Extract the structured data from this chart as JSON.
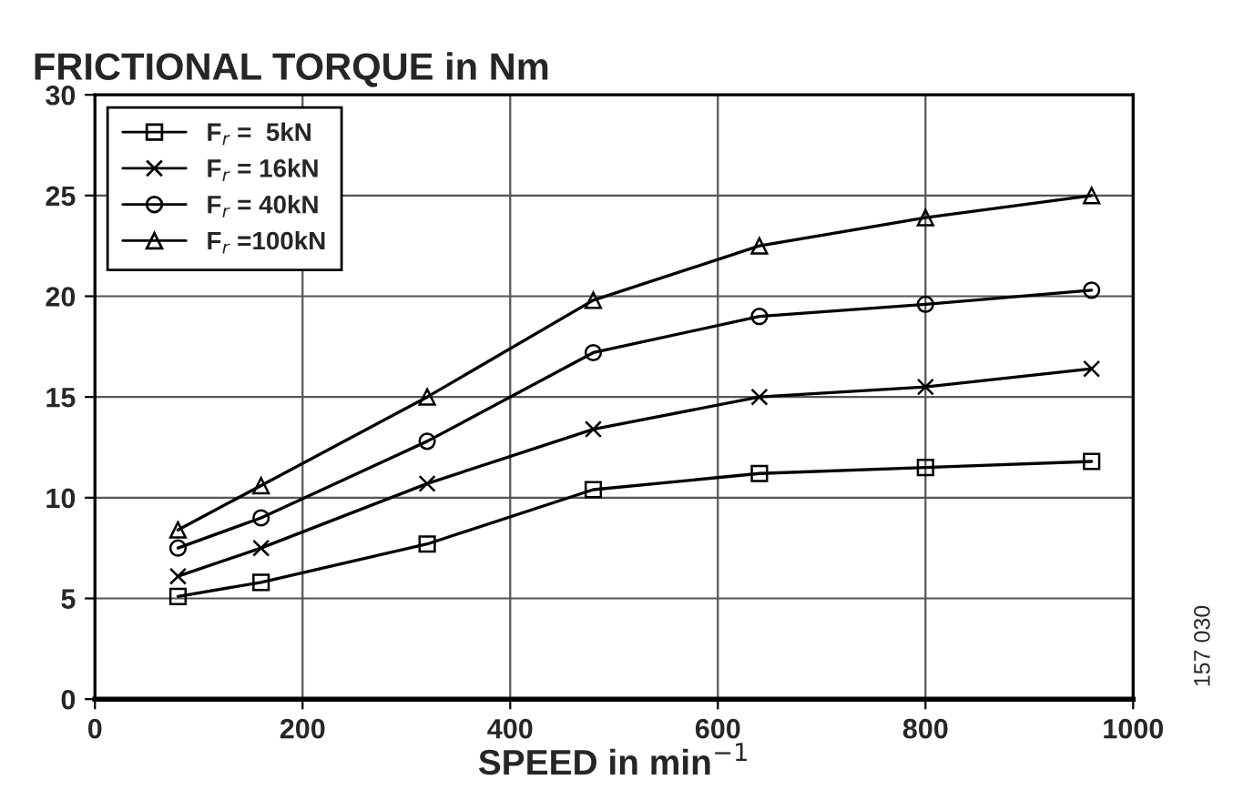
{
  "chart_data": {
    "type": "line",
    "title": "FRICTIONAL TORQUE in Nm",
    "xlabel": "SPEED in min$^{−1}$",
    "x": [
      80,
      160,
      320,
      480,
      640,
      800,
      960
    ],
    "series": [
      {
        "name": "F$_{r}$ =  5kN",
        "color": "#000000",
        "marker": "square",
        "values": [
          5.1,
          5.8,
          7.7,
          10.4,
          11.2,
          11.5,
          11.8
        ]
      },
      {
        "name": "F$_{r}$ = 16kN",
        "color": "#000000",
        "marker": "cross",
        "values": [
          6.1,
          7.5,
          10.7,
          13.4,
          15.0,
          15.5,
          16.4
        ]
      },
      {
        "name": "F$_{r}$ = 40kN",
        "color": "#000000",
        "marker": "circle",
        "values": [
          7.5,
          9.0,
          12.8,
          17.2,
          19.0,
          19.6,
          20.3
        ]
      },
      {
        "name": "F$_{r}$ =100kN",
        "color": "#000000",
        "marker": "triangle",
        "values": [
          8.4,
          10.6,
          15.0,
          19.8,
          22.5,
          23.9,
          25.0
        ]
      }
    ],
    "xlim": [
      0,
      1000
    ],
    "xticks": [
      0,
      200,
      400,
      600,
      800,
      1000
    ],
    "ylim": [
      0,
      30
    ],
    "yticks": [
      0,
      5,
      10,
      15,
      20,
      25,
      30
    ],
    "grid": true,
    "legend": "top left",
    "line_style": "solid",
    "annotations": [
      "157 030"
    ]
  }
}
